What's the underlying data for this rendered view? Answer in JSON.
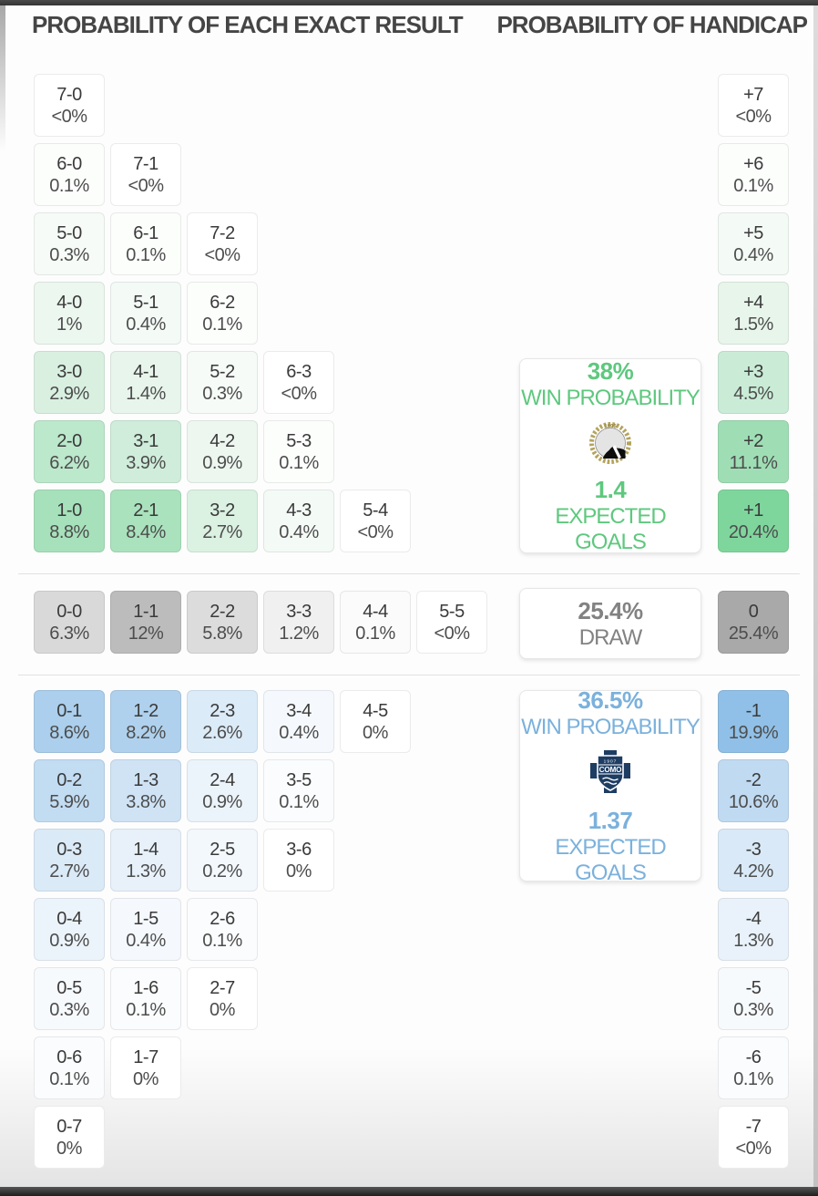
{
  "header": {
    "left_title": "PROBABILITY OF EACH EXACT RESULT",
    "right_title": "PROBABILITY OF HANDICAP"
  },
  "home_box": {
    "win_probability": "38%",
    "win_label": "WIN PROBABILITY",
    "expected_goals": "1.4",
    "goals_label": "EXPECTED GOALS",
    "badge_icon": "udinese-crest",
    "badge_year": "1896",
    "accent_color": "#5ec87e"
  },
  "draw_box": {
    "probability": "25.4%",
    "label": "DRAW",
    "accent_color": "#828282"
  },
  "away_box": {
    "win_probability": "36.5%",
    "win_label": "WIN PROBABILITY",
    "expected_goals": "1.37",
    "goals_label": "EXPECTED GOALS",
    "badge_icon": "como-crest",
    "badge_year": "1907",
    "badge_name": "COMO",
    "accent_color": "#7bb1dc"
  },
  "result_grid": {
    "home_rows": [
      [
        {
          "score": "7-0",
          "pct": "<0%",
          "bg": "#ffffff"
        }
      ],
      [
        {
          "score": "6-0",
          "pct": "0.1%",
          "bg": "#fcfefc"
        },
        {
          "score": "7-1",
          "pct": "<0%",
          "bg": "#ffffff"
        }
      ],
      [
        {
          "score": "5-0",
          "pct": "0.3%",
          "bg": "#f6fbf7"
        },
        {
          "score": "6-1",
          "pct": "0.1%",
          "bg": "#fcfefc"
        },
        {
          "score": "7-2",
          "pct": "<0%",
          "bg": "#ffffff"
        }
      ],
      [
        {
          "score": "4-0",
          "pct": "1%",
          "bg": "#ecf7ef"
        },
        {
          "score": "5-1",
          "pct": "0.4%",
          "bg": "#f4faf6"
        },
        {
          "score": "6-2",
          "pct": "0.1%",
          "bg": "#fcfefc"
        }
      ],
      [
        {
          "score": "3-0",
          "pct": "2.9%",
          "bg": "#d9f0e1"
        },
        {
          "score": "4-1",
          "pct": "1.4%",
          "bg": "#e8f5ec"
        },
        {
          "score": "5-2",
          "pct": "0.3%",
          "bg": "#f6fbf7"
        },
        {
          "score": "6-3",
          "pct": "<0%",
          "bg": "#ffffff"
        }
      ],
      [
        {
          "score": "2-0",
          "pct": "6.2%",
          "bg": "#bce8cc"
        },
        {
          "score": "3-1",
          "pct": "3.9%",
          "bg": "#cfedda"
        },
        {
          "score": "4-2",
          "pct": "0.9%",
          "bg": "#edf7f0"
        },
        {
          "score": "5-3",
          "pct": "0.1%",
          "bg": "#fcfefc"
        }
      ],
      [
        {
          "score": "1-0",
          "pct": "8.8%",
          "bg": "#a7e1bb"
        },
        {
          "score": "2-1",
          "pct": "8.4%",
          "bg": "#aae2bd"
        },
        {
          "score": "3-2",
          "pct": "2.7%",
          "bg": "#dbf1e2"
        },
        {
          "score": "4-3",
          "pct": "0.4%",
          "bg": "#f4faf6"
        },
        {
          "score": "5-4",
          "pct": "<0%",
          "bg": "#ffffff"
        }
      ]
    ],
    "draw_row": [
      {
        "score": "0-0",
        "pct": "6.3%",
        "bg": "#d9d9d9"
      },
      {
        "score": "1-1",
        "pct": "12%",
        "bg": "#bcbcbc"
      },
      {
        "score": "2-2",
        "pct": "5.8%",
        "bg": "#dcdcdc"
      },
      {
        "score": "3-3",
        "pct": "1.2%",
        "bg": "#f0f0f0"
      },
      {
        "score": "4-4",
        "pct": "0.1%",
        "bg": "#fbfbfb"
      },
      {
        "score": "5-5",
        "pct": "<0%",
        "bg": "#ffffff"
      }
    ],
    "away_rows": [
      [
        {
          "score": "0-1",
          "pct": "8.6%",
          "bg": "#abcfec"
        },
        {
          "score": "1-2",
          "pct": "8.2%",
          "bg": "#afd1ed"
        },
        {
          "score": "2-3",
          "pct": "2.6%",
          "bg": "#dcebf8"
        },
        {
          "score": "3-4",
          "pct": "0.4%",
          "bg": "#f5f9fd"
        },
        {
          "score": "4-5",
          "pct": "0%",
          "bg": "#ffffff"
        }
      ],
      [
        {
          "score": "0-2",
          "pct": "5.9%",
          "bg": "#c2dcf2"
        },
        {
          "score": "1-3",
          "pct": "3.8%",
          "bg": "#cfe3f5"
        },
        {
          "score": "2-4",
          "pct": "0.9%",
          "bg": "#ecf4fb"
        },
        {
          "score": "3-5",
          "pct": "0.1%",
          "bg": "#fafcfe"
        }
      ],
      [
        {
          "score": "0-3",
          "pct": "2.7%",
          "bg": "#dbeaf7"
        },
        {
          "score": "1-4",
          "pct": "1.3%",
          "bg": "#e8f1fa"
        },
        {
          "score": "2-5",
          "pct": "0.2%",
          "bg": "#f3f8fd"
        },
        {
          "score": "3-6",
          "pct": "0%",
          "bg": "#ffffff"
        }
      ],
      [
        {
          "score": "0-4",
          "pct": "0.9%",
          "bg": "#ecf4fb"
        },
        {
          "score": "1-5",
          "pct": "0.4%",
          "bg": "#f5f9fd"
        },
        {
          "score": "2-6",
          "pct": "0.1%",
          "bg": "#fafcfe"
        }
      ],
      [
        {
          "score": "0-5",
          "pct": "0.3%",
          "bg": "#f7fafd"
        },
        {
          "score": "1-6",
          "pct": "0.1%",
          "bg": "#fafcfe"
        },
        {
          "score": "2-7",
          "pct": "0%",
          "bg": "#ffffff"
        }
      ],
      [
        {
          "score": "0-6",
          "pct": "0.1%",
          "bg": "#fafcfe"
        },
        {
          "score": "1-7",
          "pct": "0%",
          "bg": "#ffffff"
        }
      ],
      [
        {
          "score": "0-7",
          "pct": "0%",
          "bg": "#ffffff"
        }
      ]
    ]
  },
  "handicap_column": {
    "home": [
      {
        "line": "+7",
        "pct": "<0%",
        "bg": "#ffffff"
      },
      {
        "line": "+6",
        "pct": "0.1%",
        "bg": "#fcfefc"
      },
      {
        "line": "+5",
        "pct": "0.4%",
        "bg": "#f4faf6"
      },
      {
        "line": "+4",
        "pct": "1.5%",
        "bg": "#e7f5eb"
      },
      {
        "line": "+3",
        "pct": "4.5%",
        "bg": "#caecd7"
      },
      {
        "line": "+2",
        "pct": "11.1%",
        "bg": "#9fdeb5"
      },
      {
        "line": "+1",
        "pct": "20.4%",
        "bg": "#7fd69d"
      }
    ],
    "draw": {
      "line": "0",
      "pct": "25.4%",
      "bg": "#a9a9a9"
    },
    "away": [
      {
        "line": "-1",
        "pct": "19.9%",
        "bg": "#90c0e7"
      },
      {
        "line": "-2",
        "pct": "10.6%",
        "bg": "#c0daf1"
      },
      {
        "line": "-3",
        "pct": "4.2%",
        "bg": "#d9e9f7"
      },
      {
        "line": "-4",
        "pct": "1.3%",
        "bg": "#e9f2fa"
      },
      {
        "line": "-5",
        "pct": "0.3%",
        "bg": "#f7fafd"
      },
      {
        "line": "-6",
        "pct": "0.1%",
        "bg": "#fafcfe"
      },
      {
        "line": "-7",
        "pct": "<0%",
        "bg": "#ffffff"
      }
    ]
  }
}
